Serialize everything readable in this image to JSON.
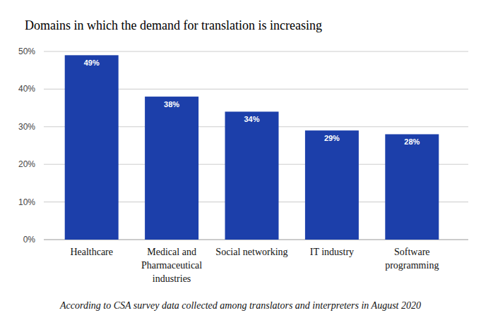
{
  "chart_data": {
    "type": "bar",
    "title": "Domains in which the demand for translation is increasing",
    "categories": [
      "Healthcare",
      "Medical and Pharmaceutical industries",
      "Social networking",
      "IT industry",
      "Software programming"
    ],
    "values": [
      49,
      38,
      34,
      29,
      28
    ],
    "value_labels": [
      "49%",
      "38%",
      "34%",
      "29%",
      "28%"
    ],
    "data_labels": true,
    "color": "#1c3faa",
    "ylim": [
      0,
      50
    ],
    "yticks": [
      {
        "value": 0,
        "label": "0%"
      },
      {
        "value": 10,
        "label": "10%"
      },
      {
        "value": 20,
        "label": "20%"
      },
      {
        "value": 30,
        "label": "30%"
      },
      {
        "value": 40,
        "label": "40%"
      },
      {
        "value": 50,
        "label": "50%"
      }
    ],
    "grid": true,
    "annotations": [
      "According to CSA survey data collected among translators and interpreters in August 2020"
    ]
  }
}
